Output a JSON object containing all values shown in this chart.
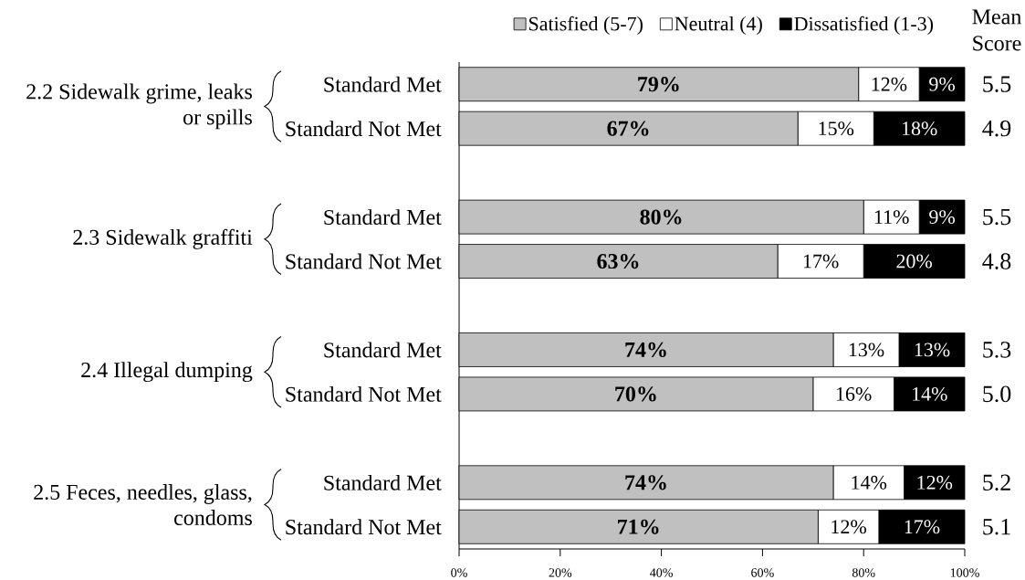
{
  "chart_data": {
    "type": "bar",
    "orientation": "horizontal",
    "stacked": true,
    "categories": [
      "Standard Met",
      "Standard Not Met",
      null,
      "Standard Met",
      "Standard Not Met",
      null,
      "Standard Met",
      "Standard Not Met",
      null,
      "Standard Met",
      "Standard Not Met"
    ],
    "series": [
      {
        "name": "Satisfied (5-7)",
        "color": "#c0c0c0",
        "values": [
          79,
          67,
          null,
          80,
          63,
          null,
          74,
          70,
          null,
          74,
          71
        ],
        "value_labels": [
          "79%",
          "67%",
          null,
          "80%",
          "63%",
          null,
          "74%",
          "70%",
          null,
          "74%",
          "71%"
        ]
      },
      {
        "name": "Neutral (4)",
        "color": "#ffffff",
        "values": [
          12,
          15,
          null,
          11,
          17,
          null,
          13,
          16,
          null,
          14,
          12
        ],
        "value_labels": [
          "12%",
          "15%",
          null,
          "11%",
          "17%",
          null,
          "13%",
          "16%",
          null,
          "14%",
          "12%"
        ]
      },
      {
        "name": "Dissatisfied (1-3)",
        "color": "#000000",
        "values": [
          9,
          18,
          null,
          9,
          20,
          null,
          13,
          14,
          null,
          12,
          17
        ],
        "value_labels": [
          "9%",
          "18%",
          null,
          "9%",
          "20%",
          null,
          "13%",
          "14%",
          null,
          "12%",
          "17%"
        ]
      }
    ],
    "xlim": [
      0,
      100
    ],
    "xticks": [
      {
        "value": 0,
        "label": "0%"
      },
      {
        "value": 20,
        "label": "20%"
      },
      {
        "value": 40,
        "label": "40%"
      },
      {
        "value": 60,
        "label": "60%"
      },
      {
        "value": 80,
        "label": "80%"
      },
      {
        "value": 100,
        "label": "100%"
      }
    ],
    "legend": "top",
    "annotations": [
      "2.2 Sidewalk grime, leaks or spills",
      "2.3 Sidewalk graffiti",
      "2.4 Illegal dumping",
      "2.5 Feces, needles, glass, condoms",
      "Mean Score",
      "5.5",
      "4.9",
      "5.5",
      "4.8",
      "5.3",
      "5.0",
      "5.2",
      "5.1"
    ]
  }
}
